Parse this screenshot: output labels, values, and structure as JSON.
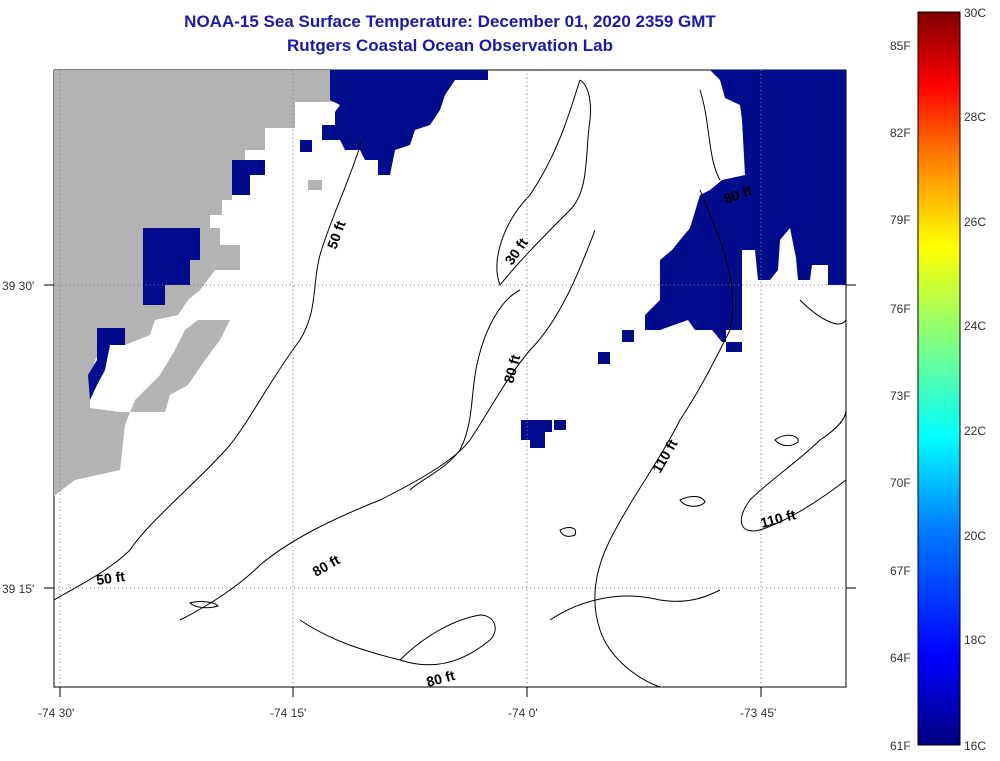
{
  "title": "NOAA-15 Sea Surface Temperature:  December 01, 2020 2359 GMT",
  "subtitle": "Rutgers Coastal Ocean Observation Lab",
  "axes": {
    "x_ticks": [
      "-74 30'",
      "-74 15'",
      "-74 0'",
      "-73 45'"
    ],
    "y_ticks": [
      "39 30'",
      "39 15'"
    ]
  },
  "contour_labels": [
    "50 ft",
    "30 ft",
    "80 ft",
    "80 ft",
    "110 ft",
    "110 ft",
    "50 ft",
    "80 ft",
    "80 ft"
  ],
  "colorbar": {
    "fahrenheit_labels": [
      "85F",
      "82F",
      "79F",
      "76F",
      "73F",
      "70F",
      "67F",
      "64F",
      "61F"
    ],
    "celsius_labels": [
      "30C",
      "28C",
      "26C",
      "24C",
      "22C",
      "20C",
      "18C",
      "16C"
    ],
    "colors": [
      "#800000",
      "#ff0000",
      "#ff8000",
      "#ffff00",
      "#80ff80",
      "#00ffff",
      "#0080ff",
      "#0000ff",
      "#000080"
    ]
  },
  "colors": {
    "land": "#b3b3b3",
    "sst_cold": "#000c8c",
    "title": "#1a1aa6"
  }
}
